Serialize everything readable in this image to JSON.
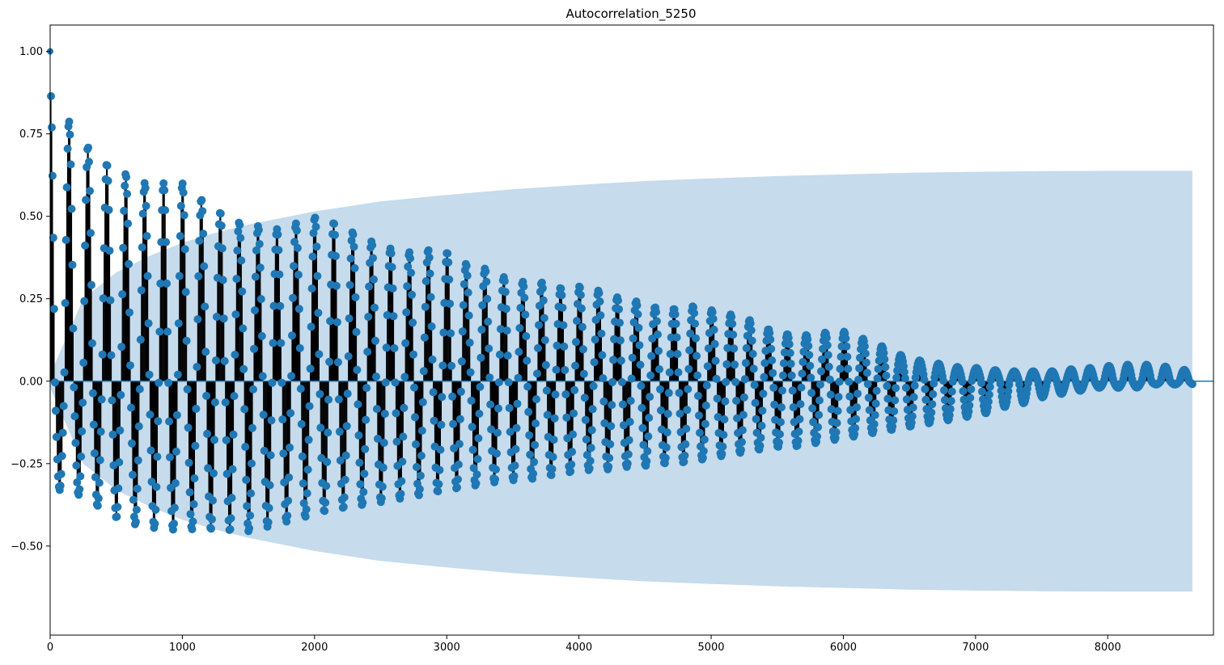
{
  "chart_data": {
    "type": "scatter",
    "title": "Autocorrelation_5250",
    "xlabel": "",
    "ylabel": "",
    "xlim": [
      0,
      8800
    ],
    "ylim": [
      -0.77,
      1.08
    ],
    "grid": false,
    "xticks": [
      0,
      1000,
      2000,
      3000,
      4000,
      5000,
      6000,
      7000,
      8000
    ],
    "xtick_labels": [
      "0",
      "1000",
      "2000",
      "3000",
      "4000",
      "5000",
      "6000",
      "7000",
      "8000"
    ],
    "yticks": [
      -0.5,
      -0.25,
      0.0,
      0.25,
      0.5,
      0.75,
      1.0
    ],
    "ytick_labels": [
      "−0.50",
      "−0.25",
      "0.00",
      "0.25",
      "0.50",
      "0.75",
      "1.00"
    ],
    "max_lag": 8640,
    "lag_zero_value": 1.0,
    "oscillation_period": 143,
    "upper_envelope": {
      "lags": [
        0,
        140,
        290,
        430,
        570,
        720,
        860,
        1010,
        1150,
        1300,
        1440,
        1580,
        1730,
        1870,
        2020,
        2160,
        2300,
        2450,
        2590,
        2740,
        2880,
        3020,
        3170,
        3310,
        3460,
        3600,
        3740,
        3890,
        4030,
        4180,
        4320,
        4460,
        4610,
        4750,
        4900,
        5040,
        5180,
        5330,
        5470,
        5620,
        5760,
        5900,
        6050,
        6190,
        6340,
        6480,
        6620,
        6770,
        6910,
        7060,
        7200,
        7340,
        7490,
        7630,
        7780,
        7920,
        8060,
        8210,
        8350,
        8500,
        8640
      ],
      "values": [
        0.9,
        0.79,
        0.71,
        0.66,
        0.63,
        0.6,
        0.6,
        0.6,
        0.55,
        0.51,
        0.48,
        0.47,
        0.46,
        0.48,
        0.5,
        0.48,
        0.45,
        0.42,
        0.4,
        0.39,
        0.4,
        0.39,
        0.35,
        0.34,
        0.31,
        0.3,
        0.3,
        0.28,
        0.29,
        0.27,
        0.25,
        0.24,
        0.22,
        0.22,
        0.23,
        0.21,
        0.2,
        0.18,
        0.15,
        0.14,
        0.14,
        0.15,
        0.15,
        0.12,
        0.1,
        0.07,
        0.06,
        0.05,
        0.04,
        0.04,
        0.03,
        0.03,
        0.03,
        0.03,
        0.04,
        0.04,
        0.05,
        0.05,
        0.05,
        0.04,
        0.03
      ]
    },
    "lower_envelope": {
      "lags": [
        0,
        140,
        290,
        430,
        570,
        720,
        860,
        1010,
        1150,
        1300,
        1440,
        1580,
        1730,
        1870,
        2020,
        2160,
        2300,
        2450,
        2590,
        2740,
        2880,
        3020,
        3170,
        3310,
        3460,
        3600,
        3740,
        3890,
        4030,
        4180,
        4320,
        4460,
        4610,
        4750,
        4900,
        5040,
        5180,
        5330,
        5470,
        5620,
        5760,
        5900,
        6050,
        6190,
        6340,
        6480,
        6620,
        6770,
        6910,
        7060,
        7200,
        7340,
        7490,
        7630,
        7780,
        7920,
        8060,
        8210,
        8350,
        8500,
        8640
      ],
      "values": [
        -0.33,
        -0.33,
        -0.36,
        -0.4,
        -0.43,
        -0.44,
        -0.45,
        -0.45,
        -0.45,
        -0.45,
        -0.46,
        -0.45,
        -0.43,
        -0.42,
        -0.4,
        -0.39,
        -0.38,
        -0.37,
        -0.36,
        -0.35,
        -0.34,
        -0.33,
        -0.32,
        -0.31,
        -0.3,
        -0.3,
        -0.29,
        -0.28,
        -0.27,
        -0.27,
        -0.26,
        -0.26,
        -0.25,
        -0.25,
        -0.24,
        -0.23,
        -0.22,
        -0.21,
        -0.2,
        -0.2,
        -0.19,
        -0.18,
        -0.17,
        -0.16,
        -0.15,
        -0.14,
        -0.13,
        -0.12,
        -0.11,
        -0.1,
        -0.08,
        -0.07,
        -0.05,
        -0.04,
        -0.03,
        -0.02,
        -0.02,
        -0.02,
        -0.01,
        -0.01,
        -0.01
      ]
    },
    "confidence_band": {
      "lags": [
        0,
        250,
        500,
        750,
        1000,
        1250,
        1500,
        1750,
        2000,
        2500,
        3000,
        3500,
        4000,
        4500,
        5000,
        5500,
        6000,
        6500,
        7000,
        7500,
        8000,
        8640
      ],
      "upper": [
        0.02,
        0.25,
        0.33,
        0.38,
        0.42,
        0.45,
        0.475,
        0.495,
        0.515,
        0.545,
        0.565,
        0.582,
        0.595,
        0.607,
        0.615,
        0.622,
        0.627,
        0.632,
        0.635,
        0.637,
        0.638,
        0.638
      ],
      "lower": [
        -0.02,
        -0.25,
        -0.33,
        -0.38,
        -0.42,
        -0.45,
        -0.475,
        -0.495,
        -0.515,
        -0.545,
        -0.565,
        -0.582,
        -0.595,
        -0.607,
        -0.615,
        -0.622,
        -0.627,
        -0.632,
        -0.635,
        -0.637,
        -0.638,
        -0.638
      ]
    },
    "colors": {
      "marker": "#1f77b4",
      "stem": "#000000",
      "band": "#c6dbec",
      "zero_line": "#1f77b4"
    }
  }
}
